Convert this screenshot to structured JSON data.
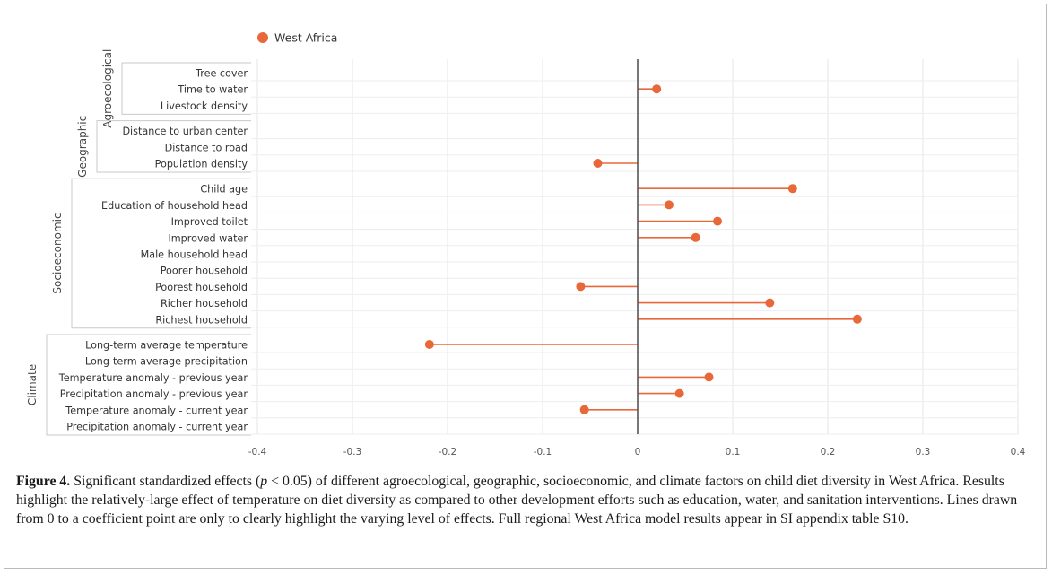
{
  "chart_data": {
    "type": "scatter",
    "style": "lollipop",
    "legend": {
      "label": "West Africa",
      "color": "#e8683a",
      "placement": "top-left"
    },
    "xlim": [
      -0.4,
      0.4
    ],
    "x_ticks": [
      "-0.4",
      "-0.3",
      "-0.2",
      "-0.1",
      "0",
      "0.1",
      "0.2",
      "0.3",
      "0.4"
    ],
    "x_tick_values": [
      -0.4,
      -0.3,
      -0.2,
      -0.1,
      0,
      0.1,
      0.2,
      0.3,
      0.4
    ],
    "grid": true,
    "groups": [
      {
        "name": "Agroecological",
        "rows": [
          {
            "label": "Tree cover",
            "value": null
          },
          {
            "label": "Time to water",
            "value": 0.02
          },
          {
            "label": "Livestock density",
            "value": null
          }
        ]
      },
      {
        "name": "Geographic",
        "rows": [
          {
            "label": "Distance to urban center",
            "value": null
          },
          {
            "label": "Distance to road",
            "value": null
          },
          {
            "label": "Population density",
            "value": -0.042
          }
        ]
      },
      {
        "name": "Socioeconomic",
        "rows": [
          {
            "label": "Child age",
            "value": 0.163
          },
          {
            "label": "Education of household head",
            "value": 0.033
          },
          {
            "label": "Improved toilet",
            "value": 0.084
          },
          {
            "label": "Improved water",
            "value": 0.061
          },
          {
            "label": "Male household head",
            "value": null
          },
          {
            "label": "Poorer household",
            "value": null
          },
          {
            "label": "Poorest household",
            "value": -0.06
          },
          {
            "label": "Richer household",
            "value": 0.139
          },
          {
            "label": "Richest household",
            "value": 0.231
          }
        ]
      },
      {
        "name": "Climate",
        "rows": [
          {
            "label": "Long-term average temperature",
            "value": -0.219
          },
          {
            "label": "Long-term average precipitation",
            "value": null
          },
          {
            "label": "Temperature anomaly - previous year",
            "value": 0.075
          },
          {
            "label": "Precipitation anomaly - previous year",
            "value": 0.044
          },
          {
            "label": "Temperature anomaly - current year",
            "value": -0.056
          },
          {
            "label": "Precipitation anomaly - current year",
            "value": null
          }
        ]
      }
    ]
  },
  "caption": {
    "label": "Figure 4.",
    "text_before_p": " Significant standardized effects (",
    "p_symbol": "p",
    "text_after_p": " < 0.05) of different agroecological, geographic, socioeconomic, and climate factors on child diet diversity in West Africa. Results highlight the relatively-large effect of temperature on diet diversity as compared to other development efforts such as education, water, and sanitation interventions. Lines drawn from 0 to a coefficient point are only to clearly highlight the varying level of effects. Full regional West Africa model results appear in SI appendix table S10."
  }
}
